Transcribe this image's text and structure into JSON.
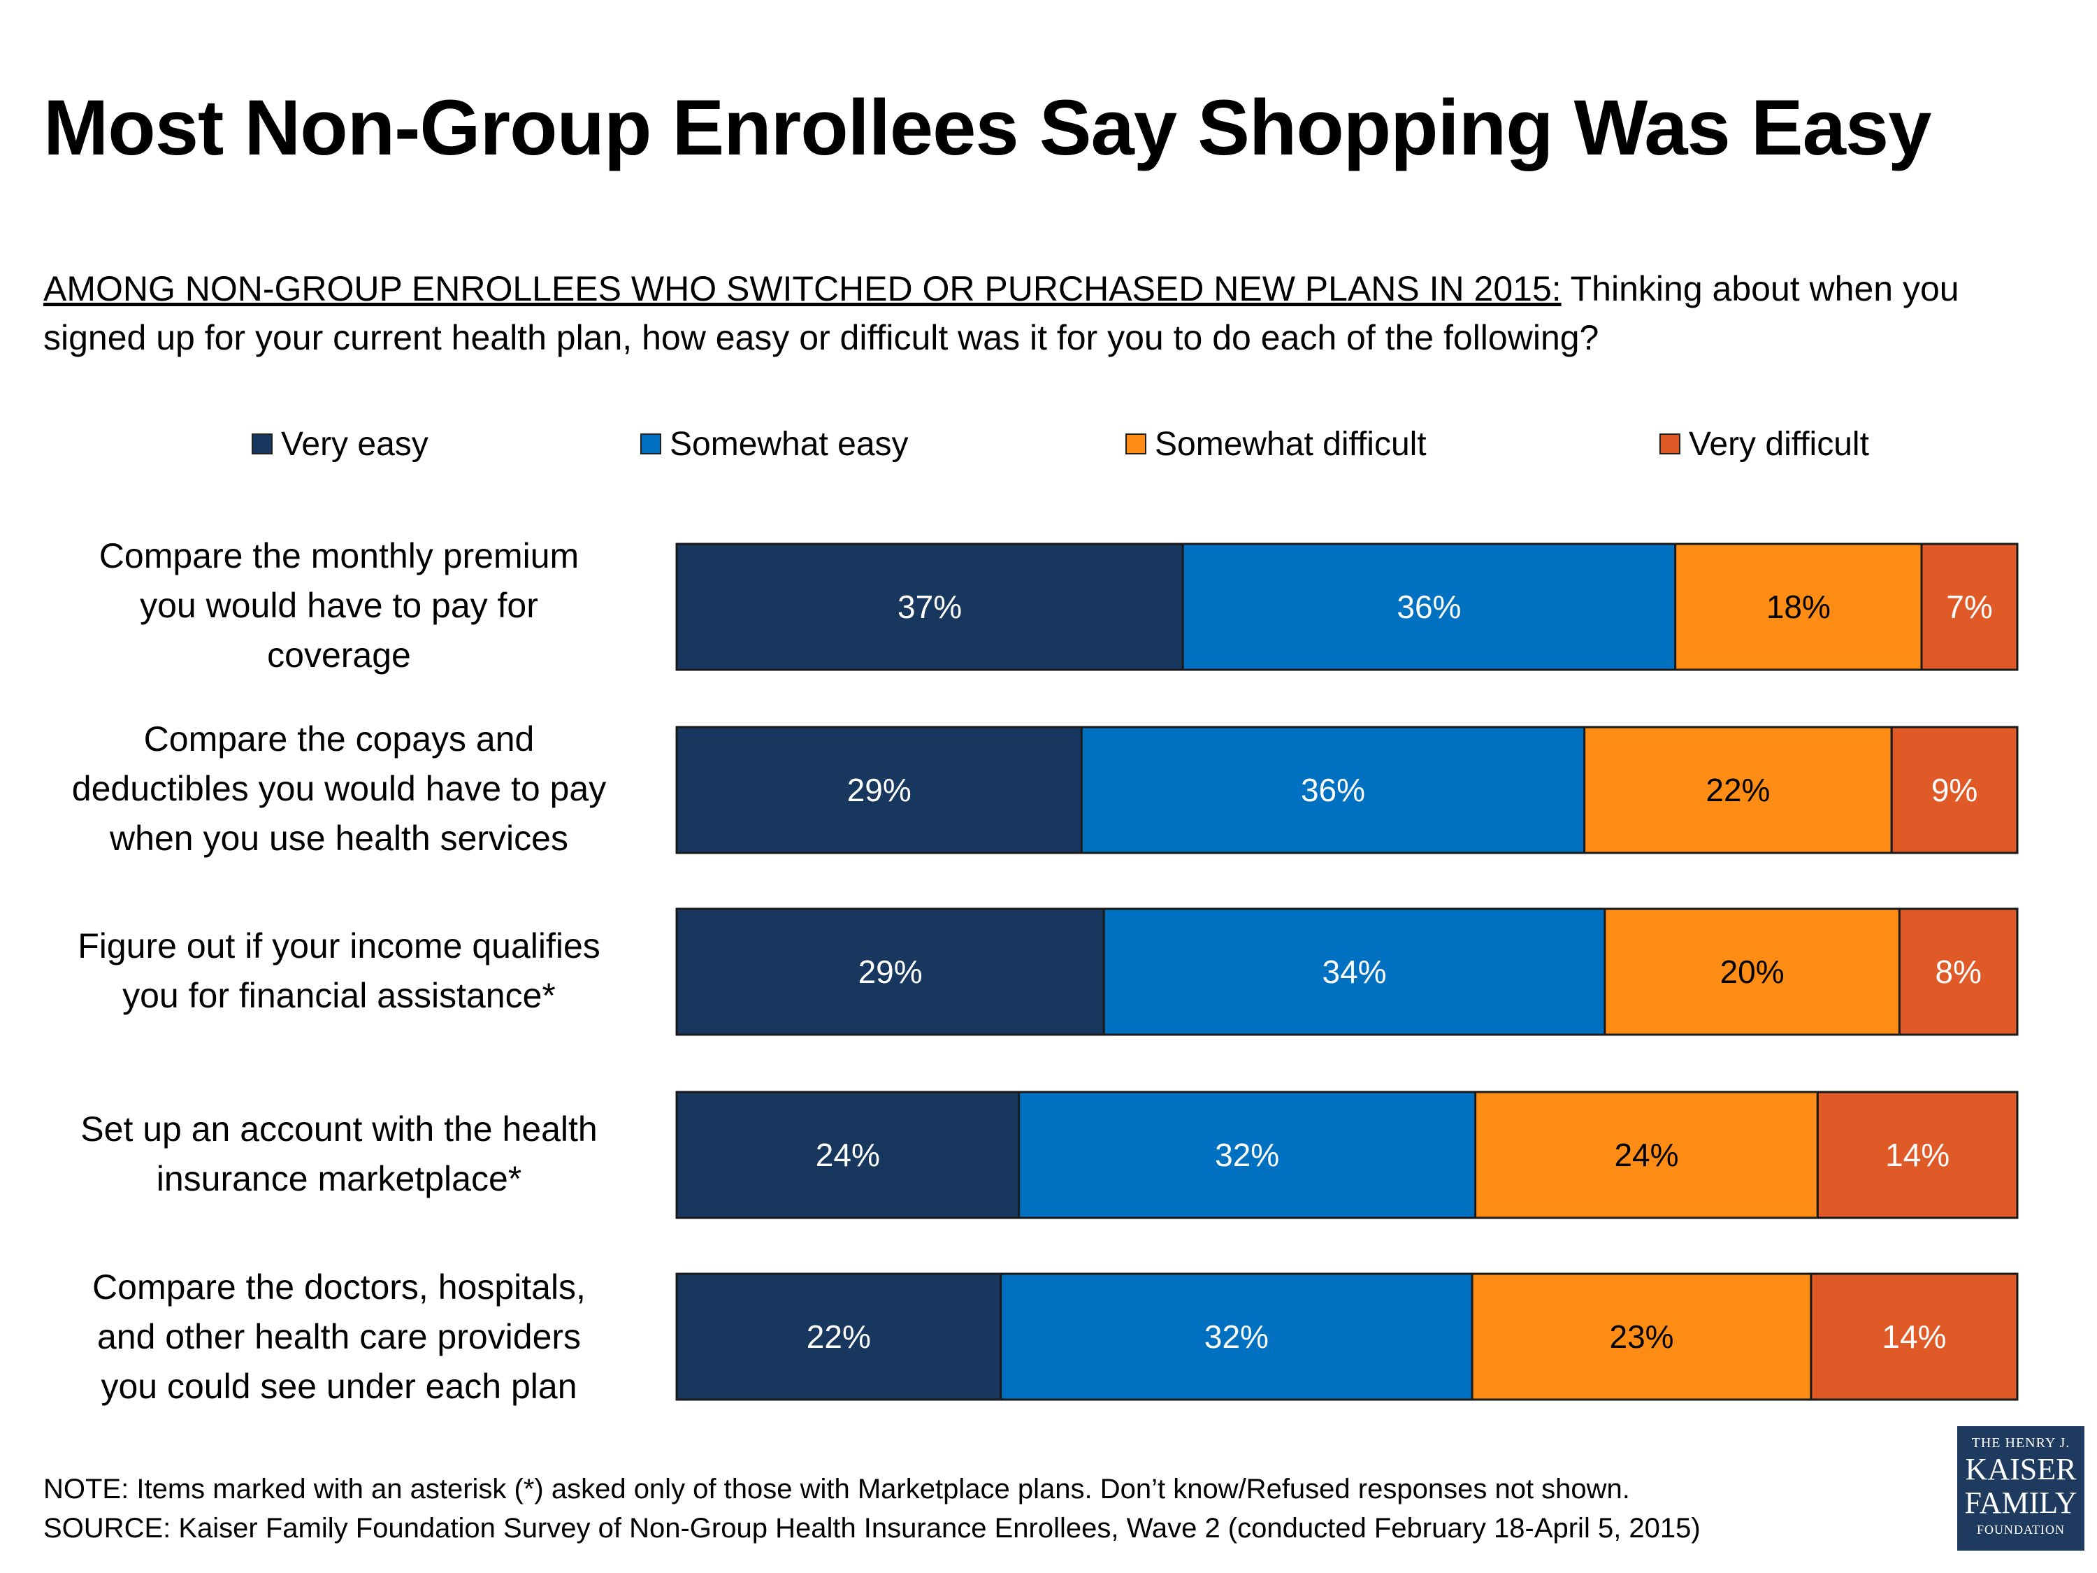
{
  "title": "Most Non-Group Enrollees Say Shopping Was Easy",
  "subtitle": {
    "lead": "AMONG NON-GROUP ENROLLEES WHO SWITCHED OR PURCHASED NEW PLANS IN 2015:",
    "text": " Thinking about when you signed up for your current health plan, how easy or difficult was it for you to do each of the following?"
  },
  "colors": {
    "very_easy": "#17375e",
    "somewhat_easy": "#0070c0",
    "somewhat_difficult": "#ff8c14",
    "very_difficult": "#e05a28"
  },
  "chart_data": {
    "type": "bar",
    "orientation": "horizontal",
    "stacked": true,
    "categories": [
      "Compare the monthly premium you would have to pay for coverage",
      "Compare the copays and deductibles you would have to pay when you use health services",
      "Figure out if your income qualifies you for financial assistance*",
      "Set up an account with the health insurance marketplace*",
      "Compare the doctors, hospitals, and other health care providers you could see under each plan"
    ],
    "category_lines": [
      [
        "Compare the monthly premium",
        "you would have to pay for",
        "coverage"
      ],
      [
        "Compare the copays and",
        "deductibles you would have to pay",
        "when you use health services"
      ],
      [
        "Figure out if your income qualifies",
        "you for financial assistance*"
      ],
      [
        "Set up an account with the health",
        "insurance marketplace*"
      ],
      [
        "Compare the doctors, hospitals,",
        "and other health care providers",
        "you could see under each plan"
      ]
    ],
    "series": [
      {
        "name": "Very easy",
        "color": "#17375e",
        "values": [
          37,
          29,
          29,
          24,
          22
        ],
        "label_color": "#ffffff"
      },
      {
        "name": "Somewhat easy",
        "color": "#0070c0",
        "values": [
          36,
          36,
          34,
          32,
          32
        ],
        "label_color": "#ffffff"
      },
      {
        "name": "Somewhat difficult",
        "color": "#ff8c14",
        "values": [
          18,
          22,
          20,
          24,
          23
        ],
        "label_color": "#000000"
      },
      {
        "name": "Very difficult",
        "color": "#e05a28",
        "values": [
          7,
          9,
          8,
          14,
          14
        ],
        "label_color": "#ffffff"
      }
    ],
    "value_suffix": "%",
    "grid": false,
    "legend_position": "top"
  },
  "notes": {
    "note": "NOTE: Items marked with an asterisk (*) asked only of those with Marketplace plans. Don’t know/Refused responses not shown.",
    "source": "SOURCE: Kaiser Family Foundation Survey of Non-Group Health Insurance Enrollees, Wave 2 (conducted February 18-April 5, 2015)"
  },
  "logo": {
    "line1": "THE HENRY J.",
    "line2a": "KAISER",
    "line2b": "FAMILY",
    "line3": "FOUNDATION"
  }
}
